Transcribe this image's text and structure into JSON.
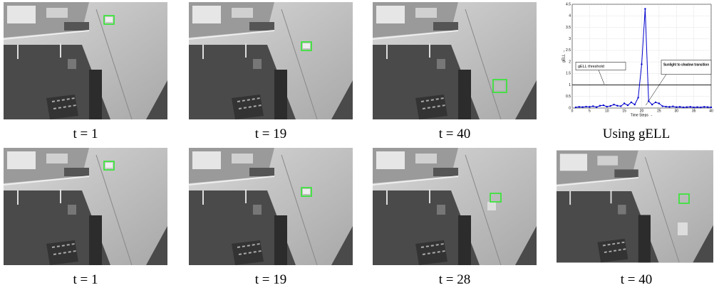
{
  "figure": {
    "captions": [
      "t = 1",
      "t = 19",
      "t = 40",
      "Using gELL",
      "t = 1",
      "t = 19",
      "t = 28",
      "t = 40"
    ]
  },
  "chart_data": {
    "type": "line",
    "x_label": "Time Steps →",
    "y_label": "gELL →",
    "x": [
      1,
      2,
      3,
      4,
      5,
      6,
      7,
      8,
      9,
      10,
      11,
      12,
      13,
      14,
      15,
      16,
      17,
      18,
      19,
      20,
      21,
      22,
      23,
      24,
      25,
      26,
      27,
      28,
      29,
      30,
      31,
      32,
      33,
      34,
      35,
      36,
      37,
      38,
      39,
      40
    ],
    "values": [
      0.03,
      0.05,
      0.04,
      0.06,
      0.05,
      0.08,
      0.04,
      0.1,
      0.12,
      0.06,
      0.09,
      0.15,
      0.1,
      0.08,
      0.2,
      0.12,
      0.25,
      0.15,
      0.45,
      1.9,
      4.3,
      0.3,
      0.15,
      0.25,
      0.2,
      0.08,
      0.06,
      0.05,
      0.07,
      0.04,
      0.05,
      0.03,
      0.04,
      0.05,
      0.03,
      0.04,
      0.03,
      0.05,
      0.04,
      0.03
    ],
    "color": "#0000cc",
    "threshold": 1,
    "threshold_label": "gELL threshold",
    "annotation": "Sunlight to shadow transition",
    "xlim": [
      0,
      40
    ],
    "ylim": [
      0,
      4.5
    ],
    "xticks": [
      0,
      5,
      10,
      15,
      20,
      25,
      30,
      35,
      40
    ],
    "yticks": [
      0,
      0.5,
      1,
      1.5,
      2,
      2.5,
      3,
      3.5,
      4,
      4.5
    ],
    "grid": true
  }
}
